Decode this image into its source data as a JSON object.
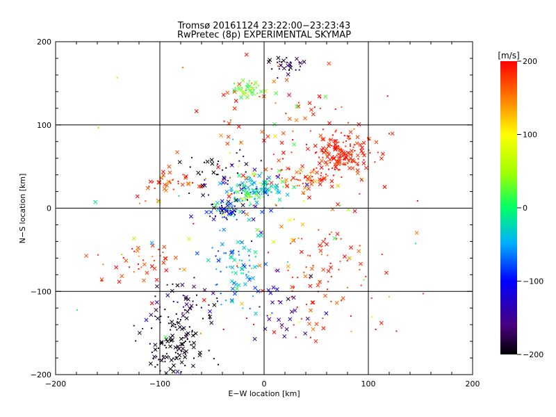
{
  "chart_data": {
    "type": "scatter",
    "title": "Tromsø 20161124 23:22:00−23:23:43",
    "subtitle": "RwPretec (8p) EXPERIMENTAL SKYMAP",
    "xlabel": "E−W location [km]",
    "ylabel": "N−S location [km]",
    "xlim": [
      -200,
      200
    ],
    "ylim": [
      -200,
      200
    ],
    "xticks": [
      "−200",
      "−100",
      "0",
      "100",
      "200"
    ],
    "yticks": [
      "−200",
      "−100",
      "0",
      "100",
      "200"
    ],
    "grid_lines": [
      -100,
      0,
      100
    ],
    "colorbar": {
      "label": "[m/s]",
      "range": [
        -200,
        200
      ],
      "ticks": [
        "200",
        "100",
        "0",
        "−100",
        "−200"
      ],
      "colormap": "rainbow-black-to-red"
    },
    "clusters": [
      {
        "cx": 75,
        "cy": 65,
        "sx": 16,
        "sy": 12,
        "n": 160,
        "v": 190,
        "vs": 12
      },
      {
        "cx": 35,
        "cy": 38,
        "sx": 18,
        "sy": 8,
        "n": 60,
        "v": 175,
        "vs": 25
      },
      {
        "cx": -10,
        "cy": 22,
        "sx": 15,
        "sy": 10,
        "n": 130,
        "v": -30,
        "vs": 45
      },
      {
        "cx": -40,
        "cy": -3,
        "sx": 10,
        "sy": 6,
        "n": 55,
        "v": -110,
        "vs": 80
      },
      {
        "cx": -25,
        "cy": -70,
        "sx": 15,
        "sy": 30,
        "n": 90,
        "v": -60,
        "vs": 35
      },
      {
        "cx": -85,
        "cy": -165,
        "sx": 15,
        "sy": 28,
        "n": 130,
        "v": -195,
        "vs": 15
      },
      {
        "cx": -75,
        "cy": -120,
        "sx": 18,
        "sy": 15,
        "n": 45,
        "v": -165,
        "vs": 35
      },
      {
        "cx": -90,
        "cy": 30,
        "sx": 15,
        "sy": 8,
        "n": 40,
        "v": 185,
        "vs": 20
      },
      {
        "cx": -120,
        "cy": -65,
        "sx": 20,
        "sy": 12,
        "n": 40,
        "v": 180,
        "vs": 20
      },
      {
        "cx": -15,
        "cy": 143,
        "sx": 8,
        "sy": 5,
        "n": 40,
        "v": 30,
        "vs": 25
      },
      {
        "cx": 20,
        "cy": 172,
        "sx": 8,
        "sy": 6,
        "n": 30,
        "v": -185,
        "vs": 20
      },
      {
        "cx": 60,
        "cy": -80,
        "sx": 28,
        "sy": 40,
        "n": 90,
        "v": 185,
        "vs": 18
      },
      {
        "cx": 20,
        "cy": 100,
        "sx": 40,
        "sy": 40,
        "n": 70,
        "v": 185,
        "vs": 25
      },
      {
        "cx": -40,
        "cy": 40,
        "sx": 20,
        "sy": 15,
        "n": 40,
        "v": -180,
        "vs": 25
      },
      {
        "cx": 0,
        "cy": -20,
        "sx": 70,
        "sy": 80,
        "n": 90,
        "v": 140,
        "vs": 90
      },
      {
        "cx": 10,
        "cy": -120,
        "sx": 20,
        "sy": 25,
        "n": 25,
        "v": -140,
        "vs": 40
      }
    ]
  }
}
